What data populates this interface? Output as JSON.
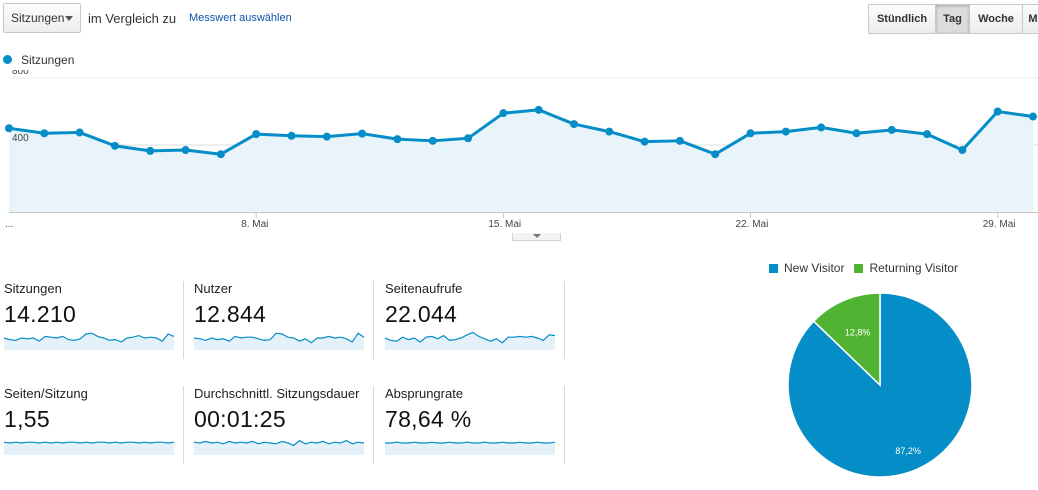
{
  "toolbar": {
    "metric_select": "Sitzungen",
    "compare_text": "im Vergleich zu",
    "compare_link": "Messwert auswählen",
    "periods": [
      {
        "label": "Stündlich",
        "active": false
      },
      {
        "label": "Tag",
        "active": true
      },
      {
        "label": "Woche",
        "active": false
      },
      {
        "label": "M",
        "active": false
      }
    ]
  },
  "legend": {
    "series_label": "Sitzungen",
    "color": "#058dc7"
  },
  "chart_data": [
    {
      "type": "area",
      "series": [
        {
          "name": "Sitzungen",
          "values": [
            500,
            470,
            475,
            395,
            365,
            370,
            345,
            465,
            455,
            450,
            468,
            435,
            425,
            440,
            590,
            610,
            525,
            480,
            420,
            425,
            345,
            470,
            480,
            505,
            470,
            490,
            465,
            370,
            600,
            570
          ]
        }
      ],
      "x_start_day": 1,
      "ylim": [
        0,
        800
      ],
      "yticks": [
        "800",
        "400"
      ],
      "x_tick_labels": [
        "...",
        "8. Mai",
        "15. Mai",
        "22. Mai",
        "29. Mai"
      ],
      "grid": true,
      "fill_color": "#e8f4fa",
      "line_color": "#058dc7"
    },
    {
      "type": "pie",
      "slices": [
        {
          "label": "New Visitor",
          "value": 87.2,
          "display": "87,2%",
          "color": "#058dc7"
        },
        {
          "label": "Returning Visitor",
          "value": 12.8,
          "display": "12,8%",
          "color": "#50b432"
        }
      ]
    }
  ],
  "scorecards": [
    {
      "label": "Sitzungen",
      "value": "14.210",
      "spark": [
        50,
        48,
        47,
        50,
        49,
        50,
        46,
        52,
        51,
        50,
        52,
        48,
        47,
        49,
        55,
        56,
        52,
        50,
        47,
        48,
        45,
        50,
        51,
        53,
        50,
        51,
        50,
        46,
        55,
        52
      ]
    },
    {
      "label": "Nutzer",
      "value": "12.844",
      "spark": [
        50,
        49,
        47,
        50,
        48,
        49,
        46,
        52,
        50,
        51,
        51,
        49,
        47,
        48,
        56,
        55,
        51,
        50,
        46,
        49,
        44,
        50,
        50,
        52,
        50,
        51,
        49,
        45,
        56,
        51
      ]
    },
    {
      "label": "Seitenaufrufe",
      "value": "22.044",
      "spark": [
        50,
        47,
        46,
        51,
        48,
        50,
        45,
        51,
        52,
        49,
        53,
        47,
        48,
        50,
        54,
        57,
        52,
        49,
        46,
        49,
        44,
        51,
        51,
        52,
        51,
        52,
        50,
        47,
        54,
        53
      ]
    },
    {
      "label": "Seiten/Sitzung",
      "value": "1,55",
      "spark": [
        51,
        50,
        51,
        50,
        51,
        51,
        50,
        51,
        50,
        51,
        50,
        51,
        51,
        50,
        51,
        50,
        51,
        51,
        50,
        51,
        50,
        51,
        51,
        50,
        51,
        50,
        51,
        51,
        50,
        51
      ]
    },
    {
      "label": "Durchschnittl. Sitzungsdauer",
      "value": "00:01:25",
      "spark": [
        51,
        50,
        52,
        50,
        51,
        49,
        52,
        50,
        51,
        50,
        52,
        49,
        51,
        50,
        49,
        52,
        50,
        47,
        53,
        49,
        51,
        50,
        52,
        49,
        51,
        50,
        53,
        49,
        51,
        50
      ]
    },
    {
      "label": "Absprungrate",
      "value": "78,64 %",
      "spark": [
        50,
        50,
        51,
        50,
        50,
        51,
        50,
        50,
        51,
        50,
        50,
        51,
        50,
        50,
        51,
        50,
        50,
        51,
        50,
        50,
        51,
        50,
        50,
        51,
        50,
        50,
        51,
        50,
        50,
        51
      ]
    }
  ],
  "pie_legend": [
    {
      "label": "New Visitor",
      "color": "#058dc7"
    },
    {
      "label": "Returning Visitor",
      "color": "#50b432"
    }
  ]
}
